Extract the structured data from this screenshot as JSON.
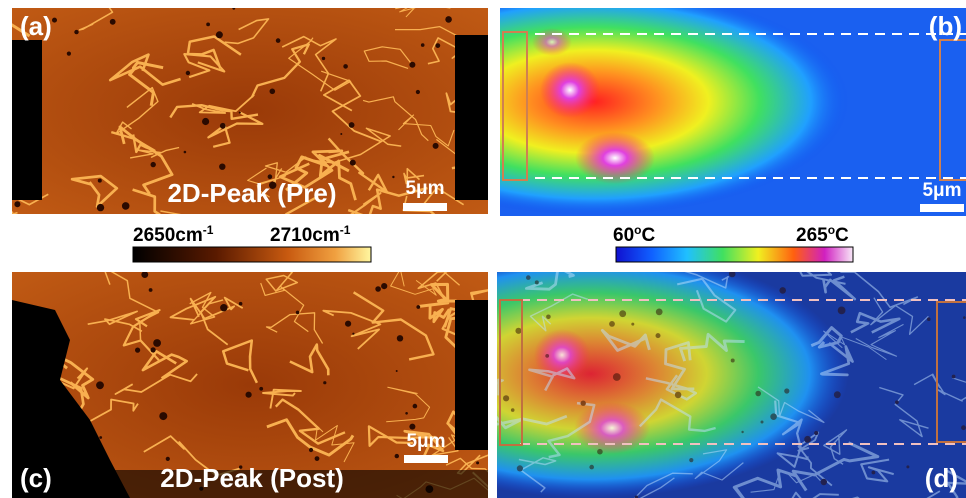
{
  "panels": [
    {
      "label": "(a)",
      "caption": "2D-Peak (Pre)",
      "scale_bar": "5μm"
    },
    {
      "label": "(b)",
      "scale_bar": "5μm"
    },
    {
      "label": "(c)",
      "caption": "2D-Peak (Post)",
      "scale_bar": "5μm"
    },
    {
      "label": "(d)"
    }
  ],
  "colorbars": [
    {
      "min_label": {
        "base": "2650cm",
        "sup": "-1"
      },
      "max_label": {
        "base": "2710cm",
        "sup": "-1"
      }
    },
    {
      "min_label": {
        "base": "60",
        "sup": "o",
        "unit": "C"
      },
      "max_label": {
        "base": "265",
        "sup": "o",
        "unit": "C"
      }
    }
  ]
}
